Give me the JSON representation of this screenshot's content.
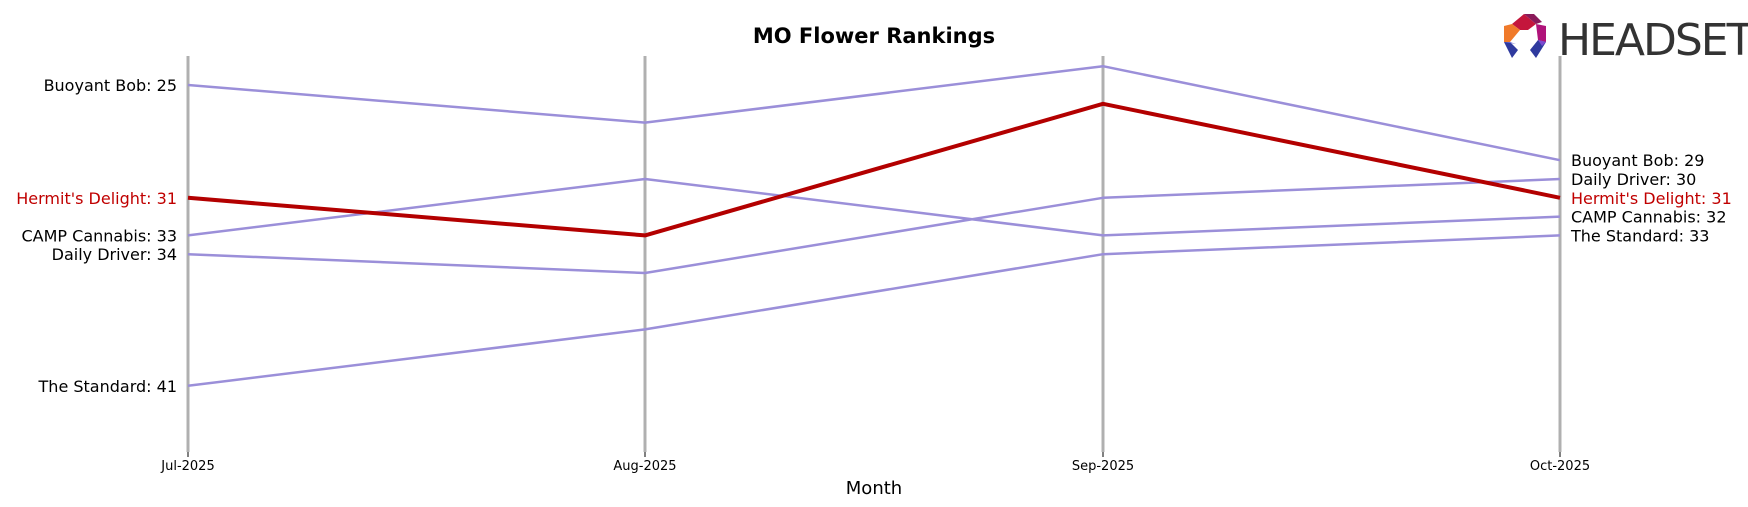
{
  "chart_data": {
    "type": "line",
    "title": "MO Flower Rankings",
    "xlabel": "Month",
    "ylabel": "",
    "categories": [
      "Jul-2025",
      "Aug-2025",
      "Sep-2025",
      "Oct-2025"
    ],
    "y_inverted": true,
    "ylim": [
      23,
      42
    ],
    "grid": "vertical lines at each month",
    "legend": "inline labels at left (first value) and right (last value)",
    "highlight_color": "#b30000",
    "other_color": "#9b8fd9",
    "series": [
      {
        "name": "Buoyant Bob",
        "values": [
          25,
          27,
          24,
          29
        ],
        "highlight": false
      },
      {
        "name": "Hermit's Delight",
        "values": [
          31,
          33,
          26,
          31
        ],
        "highlight": true
      },
      {
        "name": "CAMP Cannabis",
        "values": [
          33,
          30,
          33,
          32
        ],
        "highlight": false
      },
      {
        "name": "Daily Driver",
        "values": [
          34,
          35,
          31,
          30
        ],
        "highlight": false
      },
      {
        "name": "The Standard",
        "values": [
          41,
          38,
          34,
          33
        ],
        "highlight": false
      }
    ]
  },
  "logo": {
    "text": "HEADSET"
  }
}
